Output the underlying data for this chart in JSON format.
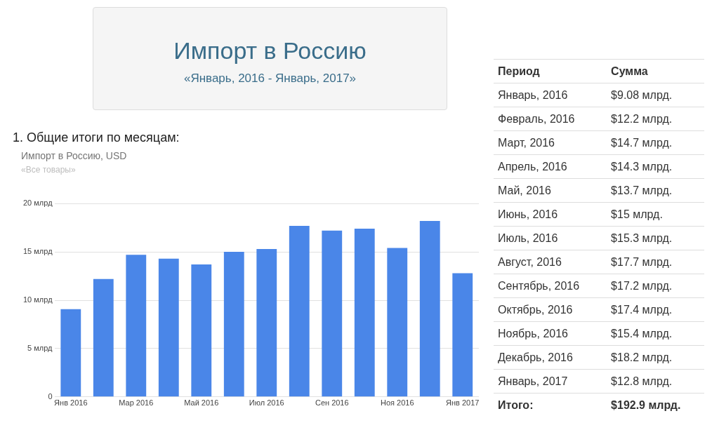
{
  "chart_data": [
    {
      "type": "other",
      "title": "Импорт в Россию",
      "subtitle": "«Январь, 2016 - Январь, 2017»"
    },
    {
      "type": "bar",
      "title": "Импорт в Россию, USD",
      "subtitle": "«Все товары»",
      "categories": [
        "Янв 2016",
        null,
        "Мар 2016",
        null,
        "Май 2016",
        null,
        "Июл 2016",
        null,
        "Сен 2016",
        null,
        "Ноя 2016",
        null,
        "Янв 2017"
      ],
      "values": [
        9.08,
        12.2,
        14.7,
        14.3,
        13.7,
        15,
        15.3,
        17.7,
        17.2,
        17.4,
        15.4,
        18.2,
        12.8
      ],
      "color": "#4a86e8",
      "ylim": [
        0,
        20
      ],
      "yticks": [
        0,
        {
          "value": 5,
          "label": "5 млрд"
        },
        {
          "value": 10,
          "label": "10 млрд"
        },
        {
          "value": 15,
          "label": "15 млрд"
        },
        {
          "value": 20,
          "label": "20 млрд"
        }
      ],
      "grid": "y",
      "annotations": [
        "1. Общие итоги по месяцам:"
      ]
    },
    {
      "type": "other",
      "annotations": [
        "Период",
        "Сумма",
        "Январь, 2016",
        "$9.08 млрд.",
        "Февраль, 2016",
        "$12.2 млрд.",
        "Март, 2016",
        "$14.7 млрд.",
        "Апрель, 2016",
        "$14.3 млрд.",
        "Май, 2016",
        "$13.7 млрд.",
        "Июнь, 2016",
        "$15 млрд.",
        "Июль, 2016",
        "$15.3 млрд.",
        "Август, 2016",
        "$17.7 млрд.",
        "Сентябрь, 2016",
        "$17.2 млрд.",
        "Октябрь, 2016",
        "$17.4 млрд.",
        "Ноябрь, 2016",
        "$15.4 млрд.",
        "Декабрь, 2016",
        "$18.2 млрд.",
        "Январь, 2017",
        "$12.8 млрд.",
        "Итого:",
        "$192.9 млрд."
      ]
    }
  ]
}
